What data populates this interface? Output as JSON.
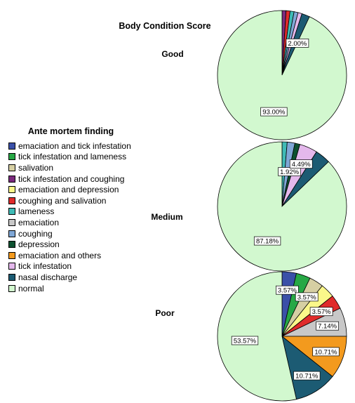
{
  "chart_data": {
    "type": "pie",
    "title": "Body Condition Score",
    "legend_title": "Ante mortem finding",
    "legend_position": "left",
    "categories": [
      {
        "name": "emaciation and tick infestation",
        "color": "#3a50a8"
      },
      {
        "name": "tick infestation and lameness",
        "color": "#27a845"
      },
      {
        "name": "salivation",
        "color": "#d6cfa3"
      },
      {
        "name": "tick infestation and coughing",
        "color": "#7b2a7e"
      },
      {
        "name": "emaciation and depression",
        "color": "#fbf78a"
      },
      {
        "name": "coughing and salivation",
        "color": "#e02b2b"
      },
      {
        "name": "lameness",
        "color": "#3fbbb6"
      },
      {
        "name": "emaciation",
        "color": "#c8c8c8"
      },
      {
        "name": "coughing",
        "color": "#7fa7d6"
      },
      {
        "name": "depression",
        "color": "#0d5130"
      },
      {
        "name": "emaciation and others",
        "color": "#f39a1e"
      },
      {
        "name": "tick infestation",
        "color": "#e4b8ec"
      },
      {
        "name": "nasal discharge",
        "color": "#1c5b73"
      },
      {
        "name": "normal",
        "color": "#d2f8cf"
      }
    ],
    "pies": [
      {
        "name": "Good",
        "slices": [
          {
            "category": "tick infestation and coughing",
            "value": 1.0
          },
          {
            "category": "coughing and salivation",
            "value": 1.0
          },
          {
            "category": "lameness",
            "value": 1.0
          },
          {
            "category": "coughing",
            "value": 1.0
          },
          {
            "category": "tick infestation",
            "value": 1.0
          },
          {
            "category": "nasal discharge",
            "value": 2.0,
            "label": "2.00%"
          },
          {
            "category": "normal",
            "value": 93.0,
            "label": "93.00%"
          }
        ]
      },
      {
        "name": "Medium",
        "slices": [
          {
            "category": "lameness",
            "value": 1.28
          },
          {
            "category": "coughing",
            "value": 1.92,
            "label": "1.92%"
          },
          {
            "category": "depression",
            "value": 1.28
          },
          {
            "category": "tick infestation",
            "value": 4.49,
            "label": "4.49%"
          },
          {
            "category": "nasal discharge",
            "value": 3.85
          },
          {
            "category": "normal",
            "value": 87.18,
            "label": "87.18%"
          }
        ]
      },
      {
        "name": "Poor",
        "slices": [
          {
            "category": "emaciation and tick infestation",
            "value": 3.57,
            "label": "3.57%"
          },
          {
            "category": "tick infestation and lameness",
            "value": 3.57
          },
          {
            "category": "salivation",
            "value": 3.57,
            "label": "3.57%"
          },
          {
            "category": "emaciation and depression",
            "value": 3.57
          },
          {
            "category": "coughing and salivation",
            "value": 3.57,
            "label": "3.57%"
          },
          {
            "category": "emaciation",
            "value": 7.14,
            "label": "7.14%"
          },
          {
            "category": "emaciation and others",
            "value": 10.71,
            "label": "10.71%"
          },
          {
            "category": "nasal discharge",
            "value": 10.71,
            "label": "10.71%"
          },
          {
            "category": "normal",
            "value": 53.57,
            "label": "53.57%"
          }
        ]
      }
    ]
  }
}
